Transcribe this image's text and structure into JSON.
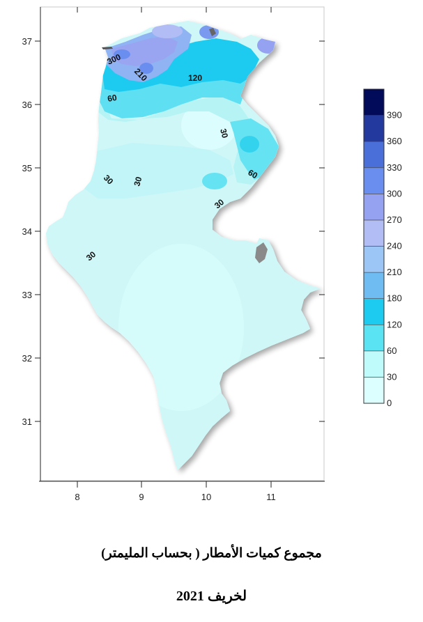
{
  "map": {
    "x_ticks": [
      "8",
      "9",
      "10",
      "11"
    ],
    "y_ticks": [
      "37",
      "36",
      "35",
      "34",
      "33",
      "32",
      "31"
    ],
    "contour_labels": [
      "300",
      "210",
      "120",
      "60",
      "30",
      "30",
      "30",
      "60",
      "30",
      "30"
    ]
  },
  "legend": {
    "levels": [
      "0",
      "30",
      "60",
      "120",
      "180",
      "210",
      "240",
      "270",
      "300",
      "330",
      "360",
      "390"
    ],
    "colors": [
      "#dcffff",
      "#c0fbfb",
      "#5ae3f3",
      "#1ccbef",
      "#6fbcf3",
      "#9cc6f5",
      "#b3bdf5",
      "#95a2f2",
      "#6a8ef0",
      "#4a6fd8",
      "#24399d",
      "#020a5a"
    ]
  },
  "title": {
    "line1": "مجموع كميات الأمطار ( بحساب المليمتر)",
    "line2": "لخريف 2021"
  }
}
